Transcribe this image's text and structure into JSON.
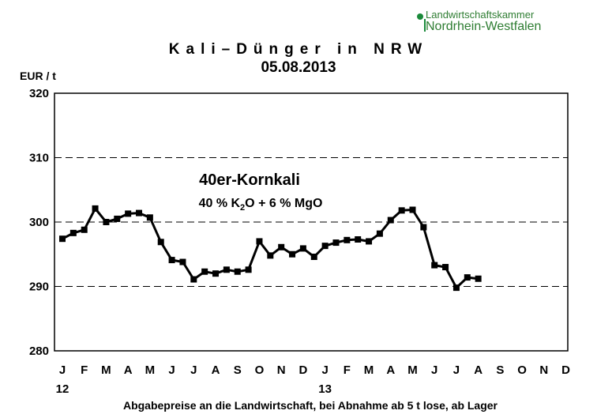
{
  "logo": {
    "line1": "Landwirtschaftskammer",
    "line2": "Nordrhein-Westfalen"
  },
  "chart_data": {
    "type": "line",
    "title": "Kali–Dünger in NRW",
    "subtitle": "05.08.2013",
    "ylabel": "EUR / t",
    "xlabel": "Abgabepreise an die Landwirtschaft, bei Abnahme ab 5 t lose, ab Lager",
    "ylim": [
      280,
      320
    ],
    "yticks": [
      280,
      290,
      300,
      310,
      320
    ],
    "grid": "dashed horizontal",
    "months": [
      "J",
      "F",
      "M",
      "A",
      "M",
      "J",
      "J",
      "A",
      "S",
      "O",
      "N",
      "D",
      "J",
      "F",
      "M",
      "A",
      "M",
      "J",
      "J",
      "A",
      "S",
      "O",
      "N",
      "D"
    ],
    "year_labels": [
      {
        "month_index": 0,
        "label": "12"
      },
      {
        "month_index": 12,
        "label": "13"
      }
    ],
    "annotation": {
      "product": "40er-Kornkali",
      "composition": [
        "40 %  K",
        "2",
        "O + 6 % MgO"
      ]
    },
    "series": [
      {
        "x": [
          0,
          0.5,
          1,
          1.5,
          2,
          2.5,
          3,
          3.5,
          4,
          4.5,
          5,
          5.5,
          6,
          6.5,
          7,
          7.5,
          8,
          8.5,
          9,
          9.5,
          10,
          10.5,
          11,
          11.5,
          12,
          12.5,
          13,
          13.5,
          14,
          14.5,
          15,
          15.5,
          16,
          16.5,
          17,
          17.5,
          18,
          18.5,
          19
        ],
        "values": [
          297.4,
          298.3,
          298.8,
          302.1,
          300.0,
          300.5,
          301.3,
          301.4,
          300.7,
          296.9,
          294.1,
          293.8,
          291.1,
          292.3,
          292.0,
          292.6,
          292.3,
          292.6,
          297.0,
          294.8,
          296.1,
          295.0,
          295.9,
          294.6,
          296.3,
          296.8,
          297.2,
          297.3,
          297.0,
          298.2,
          300.3,
          301.8,
          301.9,
          299.2,
          293.3,
          293.0,
          289.8,
          291.4,
          291.2
        ],
        "color": "#000000"
      }
    ]
  }
}
